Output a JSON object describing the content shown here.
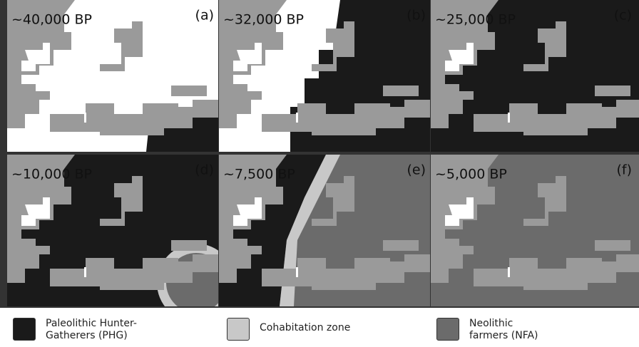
{
  "panels": [
    {
      "time": "~40,000 BP",
      "letter": "(a)"
    },
    {
      "time": "~32,000 BP",
      "letter": "(b)"
    },
    {
      "time": "~25,000 BP",
      "letter": "(c)"
    },
    {
      "time": "~10,000 BP",
      "letter": "(d)"
    },
    {
      "time": "~7,500 BP",
      "letter": "(e)"
    },
    {
      "time": "~5,000 BP",
      "letter": "(f)"
    }
  ],
  "legend": [
    {
      "label": "Paleolithic Hunter-Gatherers (PHG)"
    },
    {
      "label": "Cohabitation zone"
    },
    {
      "label": "Neolithic farmers (NFA)"
    }
  ]
}
